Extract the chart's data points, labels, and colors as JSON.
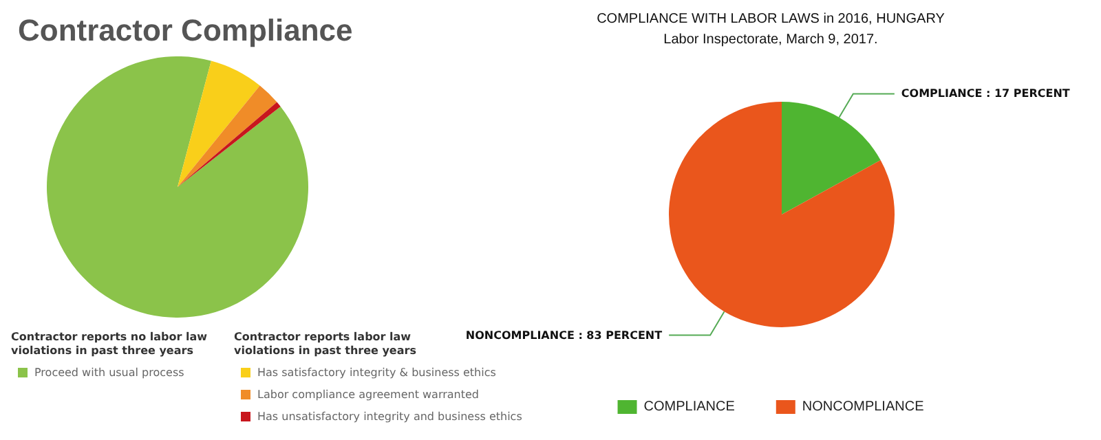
{
  "chart_data": [
    {
      "type": "pie",
      "title": "Contractor Compliance",
      "categories": [
        "Proceed with usual process",
        "Has satisfactory integrity & business ethics",
        "Labor compliance agreement warranted",
        "Has unsatisfactory integrity and business ethics"
      ],
      "values": [
        89.7,
        6.7,
        2.9,
        0.7
      ],
      "colors": [
        "#8bc34a",
        "#f9cf1a",
        "#f08c28",
        "#c8161d"
      ],
      "legend": "bottom",
      "annotations": [
        "Contractor reports no labor law violations in past three years",
        "Contractor reports labor law violations in past three years"
      ]
    },
    {
      "type": "pie",
      "title": "COMPLIANCE WITH LABOR LAWS in 2016, HUNGARY",
      "subtitle": "Labor Inspectorate, March 9, 2017.",
      "categories": [
        "COMPLIANCE",
        "NONCOMPLIANCE"
      ],
      "values": [
        17,
        83
      ],
      "colors": [
        "#4fb531",
        "#ea561c"
      ],
      "value_labels": [
        "COMPLIANCE : 17 PERCENT",
        "NONCOMPLIANCE : 83 PERCENT"
      ],
      "legend": "bottom"
    }
  ]
}
